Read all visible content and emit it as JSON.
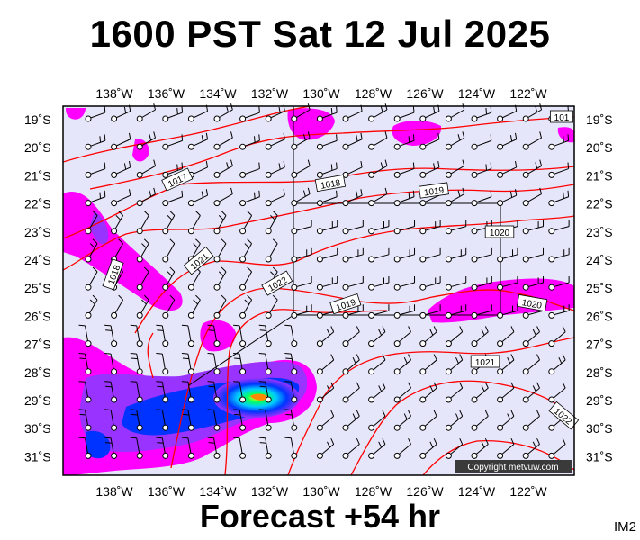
{
  "title": "1600 PST Sat 12 Jul 2025",
  "footer": "Forecast +54 hr",
  "tag": "IM2",
  "copyright": "Copyright metvuw.com",
  "longitudes": [
    "138˚W",
    "136˚W",
    "134˚W",
    "132˚W",
    "130˚W",
    "128˚W",
    "126˚W",
    "124˚W",
    "122˚W"
  ],
  "latitudes": [
    "19˚S",
    "20˚S",
    "21˚S",
    "22˚S",
    "23˚S",
    "24˚S",
    "25˚S",
    "26˚S",
    "27˚S",
    "28˚S",
    "29˚S",
    "30˚S",
    "31˚S"
  ],
  "isobar_labels": [
    "1017",
    "1018",
    "1019",
    "1020",
    "1021",
    "1022",
    "1019",
    "1018",
    "1020",
    "1021",
    "1022",
    "101"
  ],
  "colors": {
    "ocean": "#e6e6fa",
    "isobar": "#ff0000",
    "rain_light": "#ff00ff",
    "rain_mid": "#9933ff",
    "rain_heavy": "#0033ff",
    "rain_vheavy": "#00ccff",
    "rain_max": "#ffff00"
  }
}
